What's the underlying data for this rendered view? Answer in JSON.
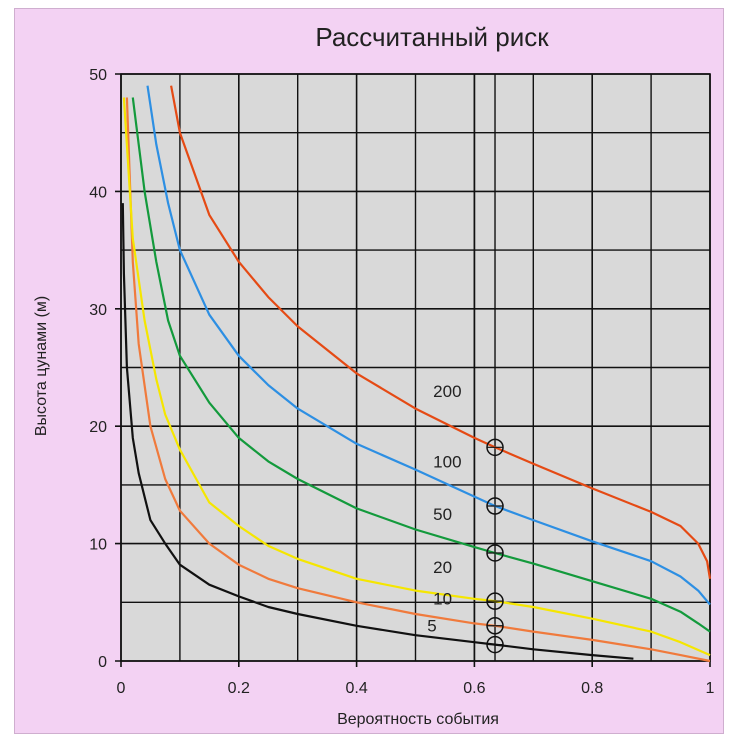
{
  "chart_data": {
    "type": "line",
    "title": "Рассчитанный риск",
    "xlabel": "Вероятность события",
    "ylabel": "Высота цунами (м)",
    "xlim": [
      0,
      1
    ],
    "ylim": [
      0,
      50
    ],
    "xticks": [
      "0",
      "0.2",
      "0.4",
      "0.6",
      "0.8",
      "1"
    ],
    "xtick_values": [
      0,
      0.2,
      0.4,
      0.6,
      0.8,
      1
    ],
    "yticks": [
      "0",
      "10",
      "20",
      "30",
      "40",
      "50"
    ],
    "ytick_values": [
      0,
      10,
      20,
      30,
      40,
      50
    ],
    "grid": true,
    "minor_grid_x": [
      0.1,
      0.3,
      0.5,
      0.6,
      0.7,
      0.9
    ],
    "minor_grid_y": [
      5,
      15,
      25,
      35,
      45
    ],
    "marker_line_x": 0.635,
    "series": [
      {
        "name": "5",
        "color": "#111111",
        "points": [
          [
            0.003,
            39
          ],
          [
            0.005,
            33
          ],
          [
            0.01,
            25
          ],
          [
            0.02,
            19
          ],
          [
            0.03,
            16
          ],
          [
            0.05,
            12
          ],
          [
            0.075,
            10
          ],
          [
            0.1,
            8.2
          ],
          [
            0.15,
            6.5
          ],
          [
            0.2,
            5.5
          ],
          [
            0.25,
            4.6
          ],
          [
            0.3,
            4
          ],
          [
            0.4,
            3
          ],
          [
            0.5,
            2.2
          ],
          [
            0.6,
            1.6
          ],
          [
            0.635,
            1.4
          ],
          [
            0.7,
            1
          ],
          [
            0.8,
            0.5
          ],
          [
            0.87,
            0.2
          ]
        ],
        "marker": [
          0.635,
          1.4
        ]
      },
      {
        "name": "10",
        "color": "#f07a3c",
        "points": [
          [
            0.01,
            48
          ],
          [
            0.02,
            34
          ],
          [
            0.03,
            27
          ],
          [
            0.05,
            20
          ],
          [
            0.075,
            15.5
          ],
          [
            0.1,
            12.8
          ],
          [
            0.15,
            10
          ],
          [
            0.2,
            8.2
          ],
          [
            0.25,
            7
          ],
          [
            0.3,
            6.2
          ],
          [
            0.4,
            5
          ],
          [
            0.5,
            4
          ],
          [
            0.6,
            3.2
          ],
          [
            0.635,
            3
          ],
          [
            0.7,
            2.5
          ],
          [
            0.8,
            1.8
          ],
          [
            0.9,
            1
          ],
          [
            0.95,
            0.5
          ],
          [
            1.0,
            0
          ]
        ],
        "marker": [
          0.635,
          3
        ]
      },
      {
        "name": "20",
        "color": "#f5e600",
        "points": [
          [
            0.005,
            48
          ],
          [
            0.02,
            36
          ],
          [
            0.04,
            29
          ],
          [
            0.06,
            24
          ],
          [
            0.075,
            21
          ],
          [
            0.1,
            18
          ],
          [
            0.15,
            13.5
          ],
          [
            0.2,
            11.5
          ],
          [
            0.25,
            9.8
          ],
          [
            0.3,
            8.7
          ],
          [
            0.4,
            7
          ],
          [
            0.5,
            6
          ],
          [
            0.6,
            5.3
          ],
          [
            0.635,
            5.1
          ],
          [
            0.7,
            4.6
          ],
          [
            0.8,
            3.6
          ],
          [
            0.9,
            2.5
          ],
          [
            0.95,
            1.6
          ],
          [
            1.0,
            0.5
          ]
        ],
        "marker": [
          0.635,
          5.1
        ]
      },
      {
        "name": "50",
        "color": "#139a3c",
        "points": [
          [
            0.02,
            48
          ],
          [
            0.04,
            40
          ],
          [
            0.06,
            34
          ],
          [
            0.08,
            29
          ],
          [
            0.1,
            26
          ],
          [
            0.15,
            22
          ],
          [
            0.2,
            19
          ],
          [
            0.25,
            17
          ],
          [
            0.3,
            15.5
          ],
          [
            0.4,
            13
          ],
          [
            0.5,
            11.2
          ],
          [
            0.6,
            9.7
          ],
          [
            0.635,
            9.2
          ],
          [
            0.7,
            8.3
          ],
          [
            0.8,
            6.8
          ],
          [
            0.9,
            5.3
          ],
          [
            0.95,
            4.2
          ],
          [
            0.98,
            3.2
          ],
          [
            1.0,
            2.5
          ]
        ],
        "marker": [
          0.635,
          9.2
        ]
      },
      {
        "name": "100",
        "color": "#2d8fe3",
        "points": [
          [
            0.045,
            49
          ],
          [
            0.06,
            44
          ],
          [
            0.08,
            39
          ],
          [
            0.1,
            35
          ],
          [
            0.15,
            29.5
          ],
          [
            0.2,
            26
          ],
          [
            0.25,
            23.5
          ],
          [
            0.3,
            21.5
          ],
          [
            0.4,
            18.5
          ],
          [
            0.5,
            16.3
          ],
          [
            0.6,
            14
          ],
          [
            0.635,
            13.2
          ],
          [
            0.7,
            12
          ],
          [
            0.8,
            10.2
          ],
          [
            0.9,
            8.5
          ],
          [
            0.95,
            7.2
          ],
          [
            0.98,
            6
          ],
          [
            1.0,
            4.8
          ]
        ],
        "marker": [
          0.635,
          13.2
        ]
      },
      {
        "name": "200",
        "color": "#e54a14",
        "points": [
          [
            0.085,
            49
          ],
          [
            0.1,
            45
          ],
          [
            0.15,
            38
          ],
          [
            0.2,
            34
          ],
          [
            0.25,
            31
          ],
          [
            0.3,
            28.5
          ],
          [
            0.4,
            24.5
          ],
          [
            0.5,
            21.5
          ],
          [
            0.6,
            19
          ],
          [
            0.635,
            18.2
          ],
          [
            0.7,
            16.8
          ],
          [
            0.8,
            14.7
          ],
          [
            0.9,
            12.7
          ],
          [
            0.95,
            11.5
          ],
          [
            0.98,
            10
          ],
          [
            0.995,
            8.5
          ],
          [
            1.0,
            7
          ]
        ],
        "marker": [
          0.635,
          18.2
        ]
      }
    ],
    "curve_labels": [
      {
        "text": "200",
        "x": 0.53,
        "y": 22.5
      },
      {
        "text": "100",
        "x": 0.53,
        "y": 16.5
      },
      {
        "text": "50",
        "x": 0.53,
        "y": 12
      },
      {
        "text": "20",
        "x": 0.53,
        "y": 7.5
      },
      {
        "text": "10",
        "x": 0.53,
        "y": 4.8
      },
      {
        "text": "5",
        "x": 0.52,
        "y": 2.5
      }
    ]
  }
}
